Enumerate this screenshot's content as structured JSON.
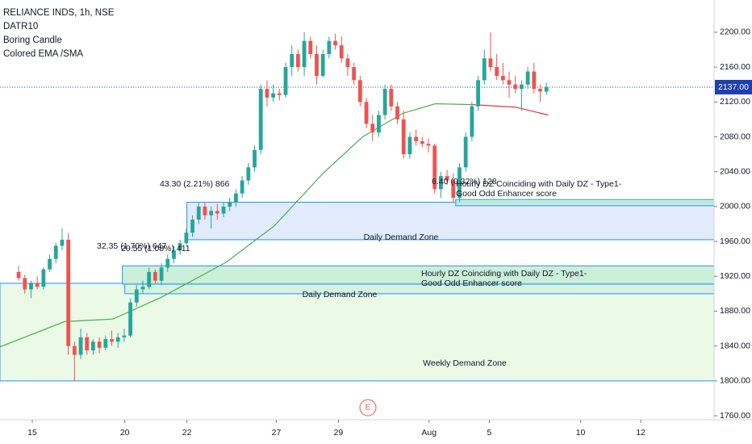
{
  "chart_data": {
    "type": "candlestick",
    "title": "RELIANCE INDS, 1h, NSE",
    "indicators": [
      "DATR10",
      "Boring Candle",
      "Colored EMA /SMA"
    ],
    "up_color": "#26a69a",
    "down_color": "#ef5350",
    "xlim": [
      -3,
      112
    ],
    "xticks": [
      {
        "value": 2.2,
        "label": "15"
      },
      {
        "value": 17.1,
        "label": "20"
      },
      {
        "value": 27.1,
        "label": "22"
      },
      {
        "value": 41.5,
        "label": "27"
      },
      {
        "value": 51.5,
        "label": "29"
      },
      {
        "value": 66.1,
        "label": "Aug"
      },
      {
        "value": 75.8,
        "label": "5"
      },
      {
        "value": 90.5,
        "label": "10"
      },
      {
        "value": 100.2,
        "label": "12"
      }
    ],
    "ylim": [
      1755.4,
      2237
    ],
    "yticks": [
      {
        "value": 1760,
        "label": "1760.00"
      },
      {
        "value": 1800,
        "label": "1800.00"
      },
      {
        "value": 1840,
        "label": "1840.00"
      },
      {
        "value": 1880,
        "label": "1880.00"
      },
      {
        "value": 1920,
        "label": "1920.00"
      },
      {
        "value": 1960,
        "label": "1960.00"
      },
      {
        "value": 2000,
        "label": "2000.00"
      },
      {
        "value": 2040,
        "label": "2040.00"
      },
      {
        "value": 2080,
        "label": "2080.00"
      },
      {
        "value": 2120,
        "label": "2120.00"
      },
      {
        "value": 2160,
        "label": "2160.00"
      },
      {
        "value": 2200,
        "label": "2200.00"
      }
    ],
    "last_price": {
      "value": 2137,
      "label": "2137.00"
    },
    "ohlc": [
      [
        1925,
        1932,
        1915,
        1918
      ],
      [
        1918,
        1922,
        1900,
        1905
      ],
      [
        1905,
        1915,
        1895,
        1912
      ],
      [
        1912,
        1920,
        1905,
        1908
      ],
      [
        1908,
        1930,
        1905,
        1928
      ],
      [
        1928,
        1945,
        1925,
        1940
      ],
      [
        1940,
        1958,
        1935,
        1955
      ],
      [
        1955,
        1975,
        1950,
        1962
      ],
      [
        1962,
        1970,
        1830,
        1840
      ],
      [
        1840,
        1845,
        1800,
        1830
      ],
      [
        1830,
        1860,
        1825,
        1850
      ],
      [
        1850,
        1855,
        1830,
        1835
      ],
      [
        1835,
        1848,
        1830,
        1845
      ],
      [
        1845,
        1850,
        1832,
        1838
      ],
      [
        1838,
        1852,
        1835,
        1848
      ],
      [
        1848,
        1858,
        1840,
        1845
      ],
      [
        1845,
        1855,
        1838,
        1850
      ],
      [
        1850,
        1860,
        1845,
        1852
      ],
      [
        1852,
        1895,
        1850,
        1890
      ],
      [
        1890,
        1910,
        1885,
        1905
      ],
      [
        1905,
        1915,
        1900,
        1908
      ],
      [
        1908,
        1930,
        1905,
        1925
      ],
      [
        1925,
        1928,
        1912,
        1915
      ],
      [
        1915,
        1935,
        1910,
        1930
      ],
      [
        1930,
        1945,
        1925,
        1940
      ],
      [
        1940,
        1955,
        1935,
        1950
      ],
      [
        1950,
        1962,
        1945,
        1958
      ],
      [
        1958,
        1975,
        1955,
        1970
      ],
      [
        1970,
        1990,
        1965,
        1985
      ],
      [
        1985,
        2005,
        1980,
        2000
      ],
      [
        2000,
        2005,
        1985,
        1990
      ],
      [
        1990,
        2000,
        1975,
        1995
      ],
      [
        1995,
        2003,
        1985,
        1992
      ],
      [
        1992,
        2005,
        1988,
        2000
      ],
      [
        2000,
        2010,
        1995,
        2005
      ],
      [
        2005,
        2020,
        2000,
        2015
      ],
      [
        2015,
        2035,
        2010,
        2030
      ],
      [
        2030,
        2050,
        2025,
        2045
      ],
      [
        2045,
        2070,
        2040,
        2065
      ],
      [
        2065,
        2140,
        2060,
        2135
      ],
      [
        2135,
        2145,
        2115,
        2125
      ],
      [
        2125,
        2140,
        2120,
        2130
      ],
      [
        2130,
        2135,
        2122,
        2128
      ],
      [
        2128,
        2165,
        2125,
        2160
      ],
      [
        2160,
        2185,
        2150,
        2175
      ],
      [
        2175,
        2180,
        2155,
        2160
      ],
      [
        2160,
        2200,
        2150,
        2190
      ],
      [
        2190,
        2195,
        2170,
        2175
      ],
      [
        2175,
        2185,
        2140,
        2150
      ],
      [
        2150,
        2180,
        2148,
        2175
      ],
      [
        2175,
        2195,
        2170,
        2190
      ],
      [
        2190,
        2198,
        2180,
        2185
      ],
      [
        2185,
        2195,
        2165,
        2170
      ],
      [
        2170,
        2175,
        2150,
        2160
      ],
      [
        2160,
        2165,
        2140,
        2145
      ],
      [
        2145,
        2150,
        2115,
        2120
      ],
      [
        2120,
        2125,
        2090,
        2095
      ],
      [
        2095,
        2105,
        2075,
        2085
      ],
      [
        2085,
        2110,
        2080,
        2105
      ],
      [
        2105,
        2140,
        2100,
        2135
      ],
      [
        2135,
        2140,
        2110,
        2115
      ],
      [
        2115,
        2120,
        2095,
        2100
      ],
      [
        2100,
        2110,
        2055,
        2060
      ],
      [
        2060,
        2085,
        2055,
        2080
      ],
      [
        2080,
        2088,
        2070,
        2075
      ],
      [
        2075,
        2080,
        2068,
        2072
      ],
      [
        2072,
        2078,
        2062,
        2070
      ],
      [
        2070,
        2072,
        2015,
        2020
      ],
      [
        2020,
        2040,
        2010,
        2035
      ],
      [
        2035,
        2042,
        2025,
        2030
      ],
      [
        2030,
        2038,
        2005,
        2010
      ],
      [
        2010,
        2050,
        2005,
        2045
      ],
      [
        2045,
        2085,
        2040,
        2080
      ],
      [
        2080,
        2120,
        2075,
        2115
      ],
      [
        2115,
        2150,
        2110,
        2145
      ],
      [
        2145,
        2180,
        2140,
        2170
      ],
      [
        2170,
        2200,
        2155,
        2160
      ],
      [
        2160,
        2175,
        2145,
        2150
      ],
      [
        2150,
        2165,
        2140,
        2145
      ],
      [
        2145,
        2155,
        2125,
        2140
      ],
      [
        2140,
        2150,
        2130,
        2135
      ],
      [
        2135,
        2145,
        2110,
        2140
      ],
      [
        2140,
        2160,
        2135,
        2155
      ],
      [
        2155,
        2165,
        2130,
        2135
      ],
      [
        2135,
        2140,
        2120,
        2132
      ],
      [
        2132,
        2142,
        2128,
        2137
      ]
    ],
    "series": [
      {
        "color": "#4caf50",
        "x": [
          -3,
          7.4,
          15.2,
          23,
          33.4,
          41.2,
          49,
          55.4,
          61.9,
          67.1,
          73
        ],
        "values": [
          1839,
          1868,
          1871,
          1896,
          1936,
          1978,
          2038,
          2080,
          2107,
          2118,
          2117
        ]
      },
      {
        "color": "#e53935",
        "x": [
          73,
          80.1,
          85.3
        ],
        "values": [
          2117,
          2114,
          2105
        ]
      }
    ],
    "zones": [
      {
        "label": "Weekly Demand Zone",
        "x0": -3,
        "x1": 112,
        "top": 1912,
        "bottom": 1800,
        "fill": "#e6f9e3",
        "stroke": "#2196f3"
      },
      {
        "label": "Daily Demand Zone",
        "x0": 27.1,
        "x1": 112,
        "top": 2005,
        "bottom": 1962,
        "fill": "#dce8fb",
        "stroke": "#2196f3"
      },
      {
        "label": "Daily Demand Zone",
        "x0": 17.1,
        "x1": 112,
        "top": 1912,
        "bottom": 1900,
        "fill": "#d4f0dc",
        "stroke": "#2196f3"
      },
      {
        "label": [
          "Hourly DZ Coinciding with Daily DZ - Type1-",
          "Good Odd Enhancer score"
        ],
        "x0": 16.7,
        "x1": 112,
        "top": 1932,
        "bottom": 1911,
        "fill": "#c3ecd3",
        "stroke": "#2196f3"
      },
      {
        "label": [
          "Hourly DZ Coinciding with Daily DZ - Type1-",
          "Good Odd Enhancer score"
        ],
        "x0": 70.4,
        "x1": 112,
        "top": 2008,
        "bottom": 2001,
        "fill": "#c3ecd3",
        "stroke": "#2196f3"
      }
    ],
    "annotations": [
      "43.30 (2.21%) 866",
      "32.35 (1.70%) 647",
      "20.55 (1.08%) 411",
      "6.40 (0.32%) 128"
    ],
    "event": "E"
  }
}
